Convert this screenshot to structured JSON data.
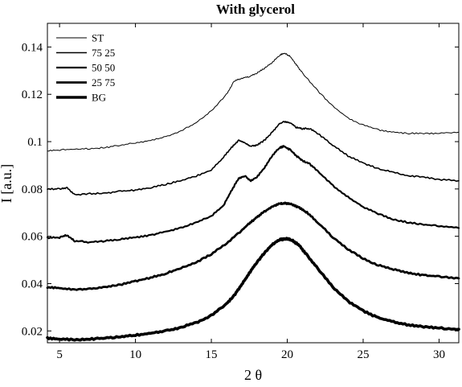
{
  "chart_data": {
    "type": "line",
    "title": "With glycerol",
    "xlabel": "2 θ",
    "ylabel": "I [a.u.]",
    "xlim": [
      4.2,
      31.3
    ],
    "ylim": [
      0.015,
      0.15
    ],
    "xticks": [
      5,
      10,
      15,
      20,
      25,
      30
    ],
    "xtick_labels": [
      "5",
      "10",
      "15",
      "20",
      "25",
      "30"
    ],
    "yticks": [
      0.02,
      0.04,
      0.06,
      0.08,
      0.1,
      0.12,
      0.14
    ],
    "ytick_labels": [
      "0.02",
      "0.04",
      "0.06",
      "0.08",
      "0.1",
      "0.12",
      "0.14"
    ],
    "grid": false,
    "legend_position": "top-left",
    "series": [
      {
        "name": "ST",
        "line_width": 1,
        "x": [
          4.2,
          5,
          6,
          7,
          8,
          9,
          10,
          11,
          12,
          13,
          14,
          15,
          16,
          16.5,
          17,
          17.5,
          18,
          18.5,
          19,
          19.5,
          19.8,
          20.2,
          20.6,
          21,
          22,
          23,
          24,
          25,
          26,
          27,
          28,
          29,
          30,
          31.3
        ],
        "y": [
          0.096,
          0.0965,
          0.0968,
          0.097,
          0.0975,
          0.0985,
          0.0995,
          0.1005,
          0.102,
          0.1045,
          0.108,
          0.113,
          0.12,
          0.1255,
          0.1268,
          0.1275,
          0.129,
          0.131,
          0.1335,
          0.1365,
          0.1375,
          0.136,
          0.1325,
          0.129,
          0.1215,
          0.115,
          0.11,
          0.107,
          0.105,
          0.104,
          0.1035,
          0.1035,
          0.1035,
          0.104
        ]
      },
      {
        "name": "75 25",
        "line_width": 1.6,
        "x": [
          4.2,
          5,
          5.5,
          6,
          7,
          8,
          9,
          10,
          11,
          12,
          13,
          14,
          15,
          15.8,
          16.4,
          16.8,
          17.2,
          17.6,
          18,
          18.5,
          19,
          19.5,
          19.8,
          20.2,
          20.6,
          21,
          21.5,
          22,
          23,
          24,
          25,
          26,
          27,
          28,
          29,
          30,
          31.3
        ],
        "y": [
          0.08,
          0.08,
          0.0805,
          0.0775,
          0.078,
          0.0782,
          0.079,
          0.0795,
          0.0805,
          0.082,
          0.0835,
          0.0855,
          0.088,
          0.0935,
          0.098,
          0.1005,
          0.0995,
          0.098,
          0.0985,
          0.1005,
          0.104,
          0.1075,
          0.1085,
          0.108,
          0.106,
          0.1055,
          0.1055,
          0.1035,
          0.0985,
          0.094,
          0.091,
          0.0885,
          0.087,
          0.0855,
          0.085,
          0.084,
          0.0835
        ]
      },
      {
        "name": "50 50",
        "line_width": 2.2,
        "x": [
          4.2,
          5,
          5.5,
          6,
          7,
          8,
          9,
          10,
          11,
          12,
          13,
          14,
          15,
          15.8,
          16.3,
          16.8,
          17.2,
          17.6,
          18,
          18.5,
          19,
          19.5,
          19.8,
          20.2,
          20.6,
          21,
          21.5,
          22,
          23,
          24,
          25,
          26,
          27,
          28,
          29,
          30,
          31.3
        ],
        "y": [
          0.0593,
          0.0595,
          0.0605,
          0.058,
          0.0575,
          0.058,
          0.0588,
          0.0595,
          0.0605,
          0.062,
          0.0635,
          0.0658,
          0.0685,
          0.073,
          0.079,
          0.0845,
          0.0855,
          0.0835,
          0.085,
          0.089,
          0.094,
          0.0975,
          0.098,
          0.0965,
          0.094,
          0.092,
          0.0905,
          0.0875,
          0.0815,
          0.0765,
          0.0725,
          0.0695,
          0.067,
          0.0658,
          0.065,
          0.0643,
          0.0635
        ]
      },
      {
        "name": "25 75",
        "line_width": 2.8,
        "x": [
          4.2,
          5,
          6,
          7,
          8,
          9,
          10,
          11,
          12,
          13,
          14,
          15,
          16,
          17,
          17.5,
          18,
          18.5,
          19,
          19.5,
          19.9,
          20.3,
          20.8,
          21.3,
          22,
          23,
          24,
          25,
          26,
          27,
          28,
          29,
          30,
          31.3
        ],
        "y": [
          0.0385,
          0.038,
          0.0375,
          0.0378,
          0.0385,
          0.0395,
          0.041,
          0.0425,
          0.0443,
          0.0465,
          0.049,
          0.0525,
          0.057,
          0.0625,
          0.0655,
          0.068,
          0.0705,
          0.0725,
          0.0738,
          0.074,
          0.0735,
          0.072,
          0.07,
          0.066,
          0.0595,
          0.0545,
          0.0505,
          0.0478,
          0.046,
          0.0445,
          0.0435,
          0.043,
          0.0422
        ]
      },
      {
        "name": "BG",
        "line_width": 3.6,
        "x": [
          4.2,
          5,
          6,
          7,
          8,
          9,
          10,
          11,
          12,
          13,
          14,
          15,
          16,
          16.5,
          17,
          17.5,
          18,
          18.5,
          19,
          19.5,
          19.9,
          20.3,
          20.8,
          21.3,
          22,
          23,
          24,
          25,
          26,
          27,
          28,
          29,
          30,
          31.3
        ],
        "y": [
          0.017,
          0.0165,
          0.0163,
          0.0165,
          0.017,
          0.0175,
          0.0182,
          0.019,
          0.02,
          0.0215,
          0.0235,
          0.0265,
          0.0315,
          0.035,
          0.0395,
          0.0445,
          0.049,
          0.053,
          0.0565,
          0.0585,
          0.059,
          0.0585,
          0.056,
          0.052,
          0.0465,
          0.0385,
          0.0325,
          0.0285,
          0.0255,
          0.0238,
          0.0225,
          0.0218,
          0.0212,
          0.0207
        ]
      }
    ]
  }
}
